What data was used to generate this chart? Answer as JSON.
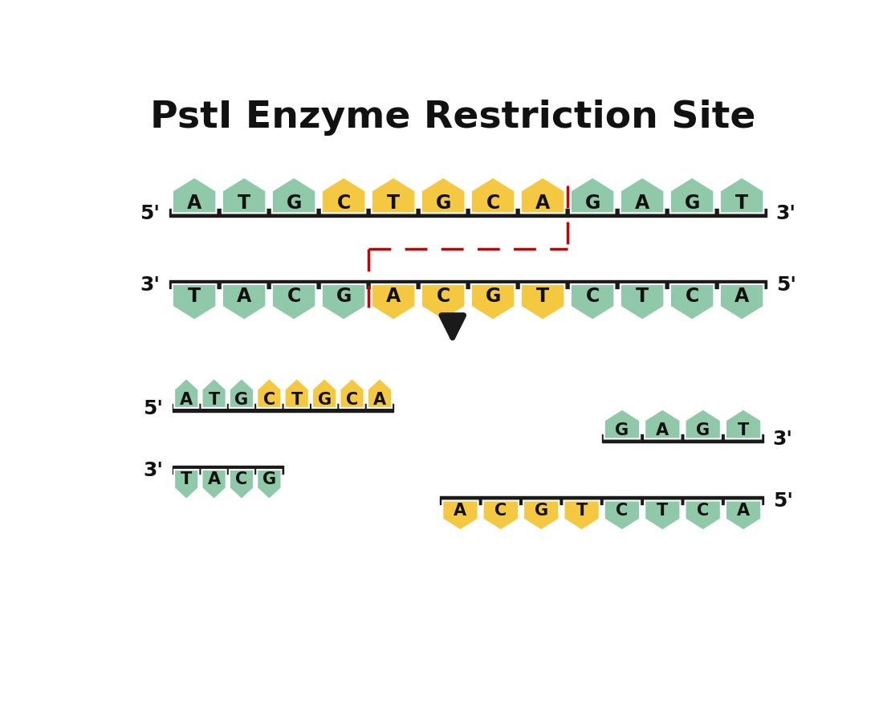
{
  "title": "PstI Enzyme Restriction Site",
  "title_fontsize": 34,
  "background_color": "#ffffff",
  "green_color": "#8fc9a9",
  "yellow_color": "#f5c842",
  "bar_color": "#1a1a1a",
  "text_color": "#111111",
  "cut_color": "#cc0000",
  "top_strand": [
    "A",
    "T",
    "G",
    "C",
    "T",
    "G",
    "C",
    "A",
    "G",
    "A",
    "G",
    "T"
  ],
  "bottom_strand": [
    "T",
    "A",
    "C",
    "G",
    "A",
    "C",
    "G",
    "T",
    "C",
    "T",
    "C",
    "A"
  ],
  "top_colors": [
    "green",
    "green",
    "green",
    "yellow",
    "yellow",
    "yellow",
    "yellow",
    "yellow",
    "green",
    "green",
    "green",
    "green"
  ],
  "bottom_colors": [
    "green",
    "green",
    "green",
    "green",
    "yellow",
    "yellow",
    "yellow",
    "yellow",
    "green",
    "green",
    "green",
    "green"
  ],
  "left_top_strand": [
    "A",
    "T",
    "G",
    "C",
    "T",
    "G",
    "C",
    "A"
  ],
  "left_top_colors": [
    "green",
    "green",
    "green",
    "yellow",
    "yellow",
    "yellow",
    "yellow",
    "yellow"
  ],
  "left_bot_strand": [
    "T",
    "A",
    "C",
    "G"
  ],
  "left_bot_colors": [
    "green",
    "green",
    "green",
    "green"
  ],
  "right_top_strand": [
    "G",
    "A",
    "G",
    "T"
  ],
  "right_top_colors": [
    "green",
    "green",
    "green",
    "green"
  ],
  "right_bot_strand": [
    "A",
    "C",
    "G",
    "T",
    "C",
    "T",
    "C",
    "A"
  ],
  "right_bot_colors": [
    "yellow",
    "yellow",
    "yellow",
    "yellow",
    "green",
    "green",
    "green",
    "green"
  ]
}
